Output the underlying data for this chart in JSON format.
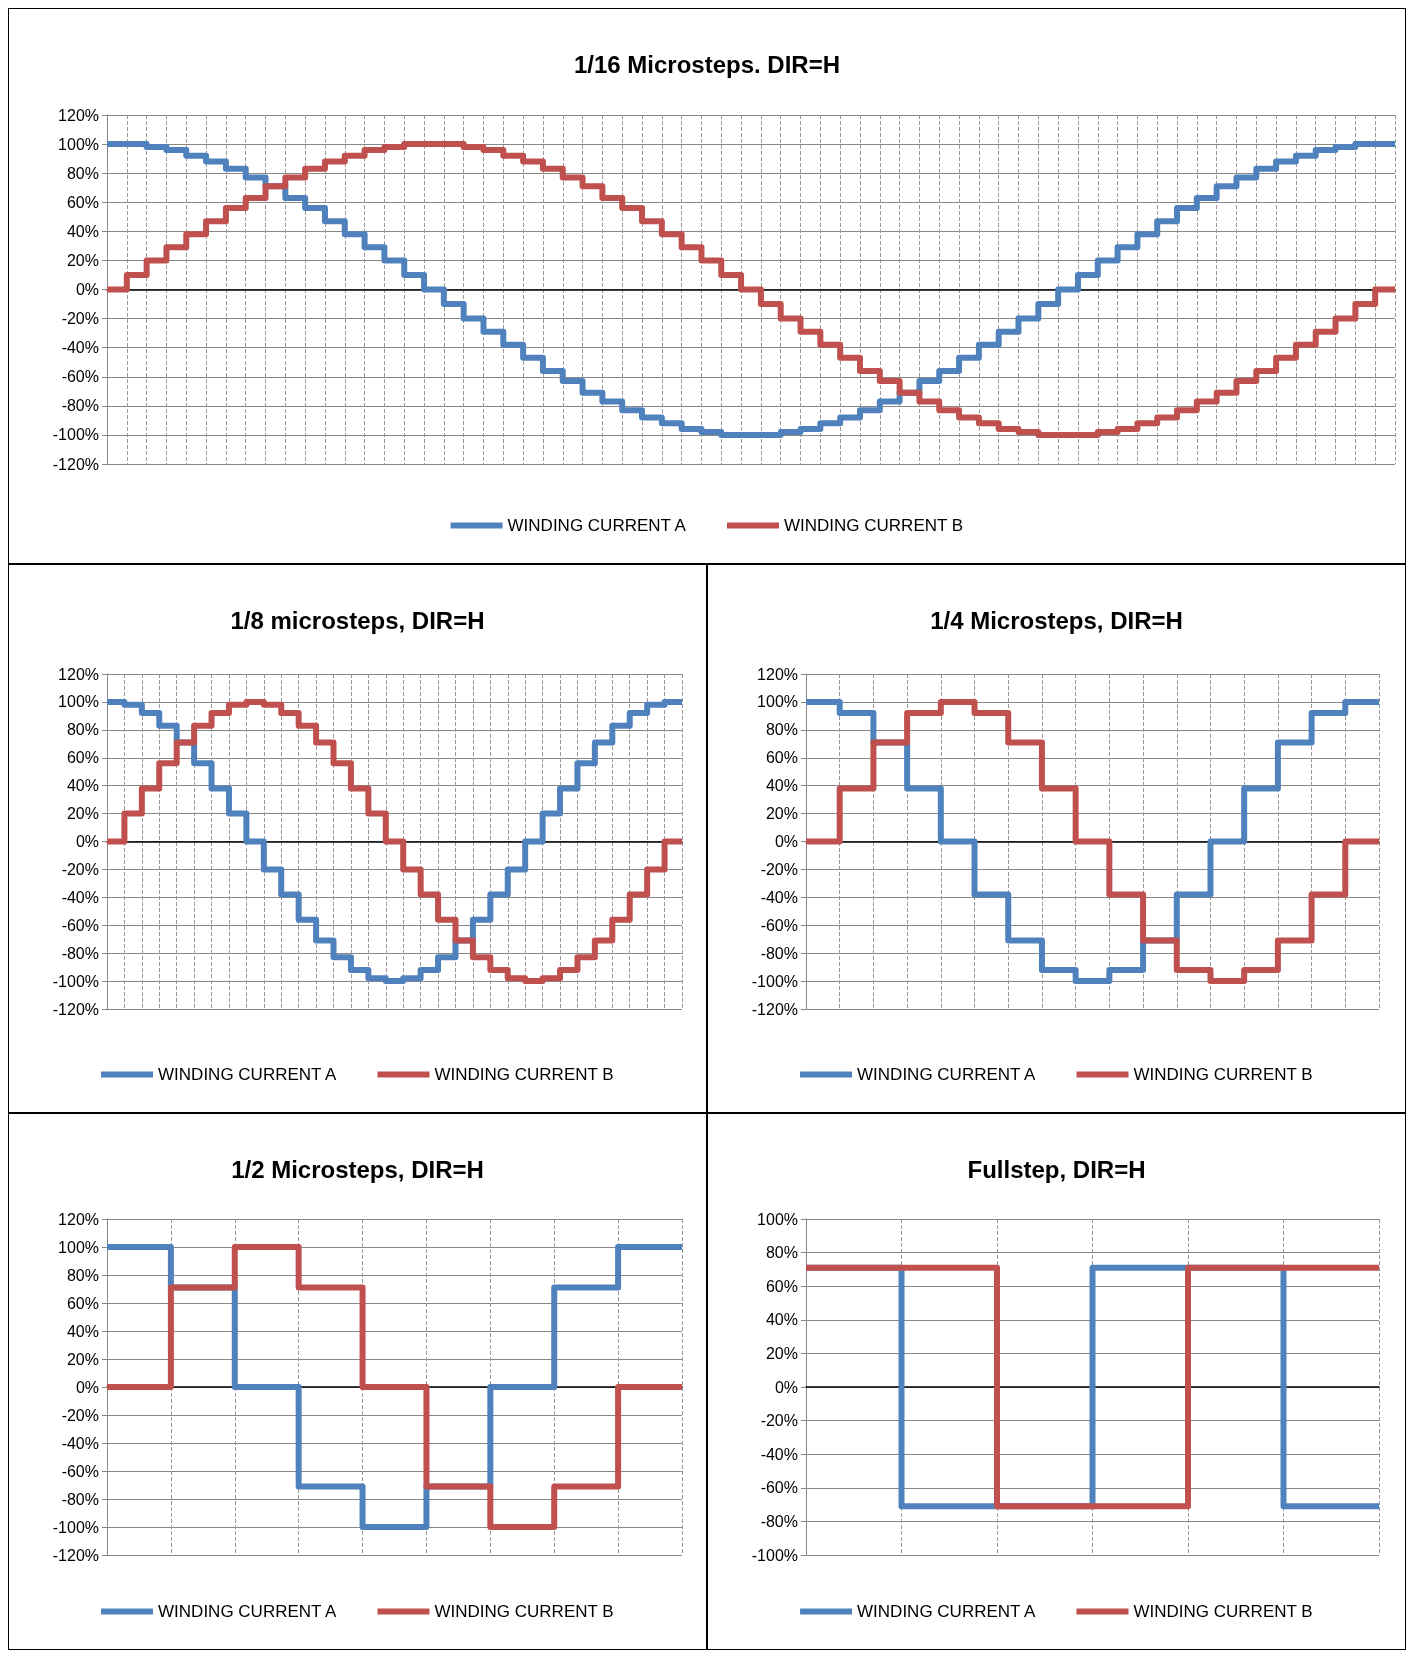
{
  "chart_data": [
    {
      "type": "step",
      "title": "1/16 Microsteps. DIR=H",
      "categories": [
        null,
        null,
        null,
        null,
        null,
        null,
        null,
        null,
        null,
        null,
        null,
        null,
        null,
        null,
        null,
        null,
        null,
        null,
        null,
        null,
        null,
        null,
        null,
        null,
        null,
        null,
        null,
        null,
        null,
        null,
        null,
        null,
        null,
        null,
        null,
        null,
        null,
        null,
        null,
        null,
        null,
        null,
        null,
        null,
        null,
        null,
        null,
        null,
        null,
        null,
        null,
        null,
        null,
        null,
        null,
        null,
        null,
        null,
        null,
        null,
        null,
        null,
        null,
        null,
        null,
        null
      ],
      "series": [
        {
          "name": "WINDING CURRENT A",
          "color": "#4f81bd",
          "values": [
            100,
            100,
            98,
            96,
            92,
            88,
            83,
            77,
            71,
            63,
            56,
            47,
            38,
            29,
            20,
            10,
            0,
            -10,
            -20,
            -29,
            -38,
            -47,
            -56,
            -63,
            -71,
            -77,
            -83,
            -88,
            -92,
            -96,
            -98,
            -100,
            -100,
            -100,
            -98,
            -96,
            -92,
            -88,
            -83,
            -77,
            -71,
            -63,
            -56,
            -47,
            -38,
            -29,
            -20,
            -10,
            0,
            10,
            20,
            29,
            38,
            47,
            56,
            63,
            71,
            77,
            83,
            88,
            92,
            96,
            98,
            100,
            100,
            100
          ]
        },
        {
          "name": "WINDING CURRENT B",
          "color": "#c0504d",
          "values": [
            0,
            10,
            20,
            29,
            38,
            47,
            56,
            63,
            71,
            77,
            83,
            88,
            92,
            96,
            98,
            100,
            100,
            100,
            98,
            96,
            92,
            88,
            83,
            77,
            71,
            63,
            56,
            47,
            38,
            29,
            20,
            10,
            0,
            -10,
            -20,
            -29,
            -38,
            -47,
            -56,
            -63,
            -71,
            -77,
            -83,
            -88,
            -92,
            -96,
            -98,
            -100,
            -100,
            -100,
            -98,
            -96,
            -92,
            -88,
            -83,
            -77,
            -71,
            -63,
            -56,
            -47,
            -38,
            -29,
            -20,
            -10,
            0,
            0
          ]
        }
      ],
      "ylim": [
        -120,
        120
      ],
      "yticks": [
        {
          "value": -120,
          "label": "-120%"
        },
        {
          "value": -100,
          "label": "-100%"
        },
        {
          "value": -80,
          "label": "-80%"
        },
        {
          "value": -60,
          "label": "-60%"
        },
        {
          "value": -40,
          "label": "-40%"
        },
        {
          "value": -20,
          "label": "-20%"
        },
        {
          "value": 0,
          "label": "0%"
        },
        {
          "value": 20,
          "label": "20%"
        },
        {
          "value": 40,
          "label": "40%"
        },
        {
          "value": 60,
          "label": "60%"
        },
        {
          "value": 80,
          "label": "80%"
        },
        {
          "value": 100,
          "label": "100%"
        },
        {
          "value": 120,
          "label": "120%"
        }
      ],
      "grid": true,
      "legend": "bottom",
      "tick_labels": "y"
    },
    {
      "type": "step",
      "title": "1/8 microsteps, DIR=H",
      "categories": [
        null,
        null,
        null,
        null,
        null,
        null,
        null,
        null,
        null,
        null,
        null,
        null,
        null,
        null,
        null,
        null,
        null,
        null,
        null,
        null,
        null,
        null,
        null,
        null,
        null,
        null,
        null,
        null,
        null,
        null,
        null,
        null,
        null,
        null
      ],
      "series": [
        {
          "name": "WINDING CURRENT A",
          "color": "#4f81bd",
          "values": [
            100,
            98,
            92,
            83,
            71,
            56,
            38,
            20,
            0,
            -20,
            -38,
            -56,
            -71,
            -83,
            -92,
            -98,
            -100,
            -98,
            -92,
            -83,
            -71,
            -56,
            -38,
            -20,
            0,
            20,
            38,
            56,
            71,
            83,
            92,
            98,
            100,
            100
          ]
        },
        {
          "name": "WINDING CURRENT B",
          "color": "#c0504d",
          "values": [
            0,
            20,
            38,
            56,
            71,
            83,
            92,
            98,
            100,
            98,
            92,
            83,
            71,
            56,
            38,
            20,
            0,
            -20,
            -38,
            -56,
            -71,
            -83,
            -92,
            -98,
            -100,
            -98,
            -92,
            -83,
            -71,
            -56,
            -38,
            -20,
            0,
            0
          ]
        }
      ],
      "ylim": [
        -120,
        120
      ],
      "yticks": [
        {
          "value": -120,
          "label": "-120%"
        },
        {
          "value": -100,
          "label": "-100%"
        },
        {
          "value": -80,
          "label": "-80%"
        },
        {
          "value": -60,
          "label": "-60%"
        },
        {
          "value": -40,
          "label": "-40%"
        },
        {
          "value": -20,
          "label": "-20%"
        },
        {
          "value": 0,
          "label": "0%"
        },
        {
          "value": 20,
          "label": "20%"
        },
        {
          "value": 40,
          "label": "40%"
        },
        {
          "value": 60,
          "label": "60%"
        },
        {
          "value": 80,
          "label": "80%"
        },
        {
          "value": 100,
          "label": "100%"
        },
        {
          "value": 120,
          "label": "120%"
        }
      ],
      "grid": true,
      "legend": "bottom",
      "tick_labels": "y"
    },
    {
      "type": "step",
      "title": "1/4 Microsteps, DIR=H",
      "categories": [
        null,
        null,
        null,
        null,
        null,
        null,
        null,
        null,
        null,
        null,
        null,
        null,
        null,
        null,
        null,
        null,
        null,
        null
      ],
      "series": [
        {
          "name": "WINDING CURRENT A",
          "color": "#4f81bd",
          "values": [
            100,
            92,
            71,
            38,
            0,
            -38,
            -71,
            -92,
            -100,
            -92,
            -71,
            -38,
            0,
            38,
            71,
            92,
            100,
            100
          ]
        },
        {
          "name": "WINDING CURRENT B",
          "color": "#c0504d",
          "values": [
            0,
            38,
            71,
            92,
            100,
            92,
            71,
            38,
            0,
            -38,
            -71,
            -92,
            -100,
            -92,
            -71,
            -38,
            0,
            0
          ]
        }
      ],
      "ylim": [
        -120,
        120
      ],
      "yticks": [
        {
          "value": -120,
          "label": "-120%"
        },
        {
          "value": -100,
          "label": "-100%"
        },
        {
          "value": -80,
          "label": "-80%"
        },
        {
          "value": -60,
          "label": "-60%"
        },
        {
          "value": -40,
          "label": "-40%"
        },
        {
          "value": -20,
          "label": "-20%"
        },
        {
          "value": 0,
          "label": "0%"
        },
        {
          "value": 20,
          "label": "20%"
        },
        {
          "value": 40,
          "label": "40%"
        },
        {
          "value": 60,
          "label": "60%"
        },
        {
          "value": 80,
          "label": "80%"
        },
        {
          "value": 100,
          "label": "100%"
        },
        {
          "value": 120,
          "label": "120%"
        }
      ],
      "grid": true,
      "legend": "bottom",
      "tick_labels": "y"
    },
    {
      "type": "step",
      "title": "1/2 Microsteps, DIR=H",
      "categories": [
        null,
        null,
        null,
        null,
        null,
        null,
        null,
        null,
        null,
        null
      ],
      "series": [
        {
          "name": "WINDING CURRENT A",
          "color": "#4f81bd",
          "values": [
            100,
            71,
            0,
            -71,
            -100,
            -71,
            0,
            71,
            100,
            100
          ]
        },
        {
          "name": "WINDING CURRENT B",
          "color": "#c0504d",
          "values": [
            0,
            71,
            100,
            71,
            0,
            -71,
            -100,
            -71,
            0,
            0
          ]
        }
      ],
      "ylim": [
        -120,
        120
      ],
      "yticks": [
        {
          "value": -120,
          "label": "-120%"
        },
        {
          "value": -100,
          "label": "-100%"
        },
        {
          "value": -80,
          "label": "-80%"
        },
        {
          "value": -60,
          "label": "-60%"
        },
        {
          "value": -40,
          "label": "-40%"
        },
        {
          "value": -20,
          "label": "-20%"
        },
        {
          "value": 0,
          "label": "0%"
        },
        {
          "value": 20,
          "label": "20%"
        },
        {
          "value": 40,
          "label": "40%"
        },
        {
          "value": 60,
          "label": "60%"
        },
        {
          "value": 80,
          "label": "80%"
        },
        {
          "value": 100,
          "label": "100%"
        },
        {
          "value": 120,
          "label": "120%"
        }
      ],
      "grid": true,
      "legend": "bottom",
      "tick_labels": "y"
    },
    {
      "type": "step",
      "title": "Fullstep, DIR=H",
      "categories": [
        null,
        null,
        null,
        null,
        null,
        null,
        null
      ],
      "series": [
        {
          "name": "WINDING CURRENT A",
          "color": "#4f81bd",
          "values": [
            71,
            -71,
            -71,
            71,
            71,
            -71,
            -71
          ]
        },
        {
          "name": "WINDING CURRENT B",
          "color": "#c0504d",
          "values": [
            71,
            71,
            -71,
            -71,
            71,
            71,
            71
          ]
        }
      ],
      "ylim": [
        -100,
        100
      ],
      "yticks": [
        {
          "value": -100,
          "label": "-100%"
        },
        {
          "value": -80,
          "label": "-80%"
        },
        {
          "value": -60,
          "label": "-60%"
        },
        {
          "value": -40,
          "label": "-40%"
        },
        {
          "value": -20,
          "label": "-20%"
        },
        {
          "value": 0,
          "label": "0%"
        },
        {
          "value": 20,
          "label": "20%"
        },
        {
          "value": 40,
          "label": "40%"
        },
        {
          "value": 60,
          "label": "60%"
        },
        {
          "value": 80,
          "label": "80%"
        },
        {
          "value": 100,
          "label": "100%"
        }
      ],
      "grid": true,
      "legend": "bottom",
      "tick_labels": "y"
    }
  ]
}
